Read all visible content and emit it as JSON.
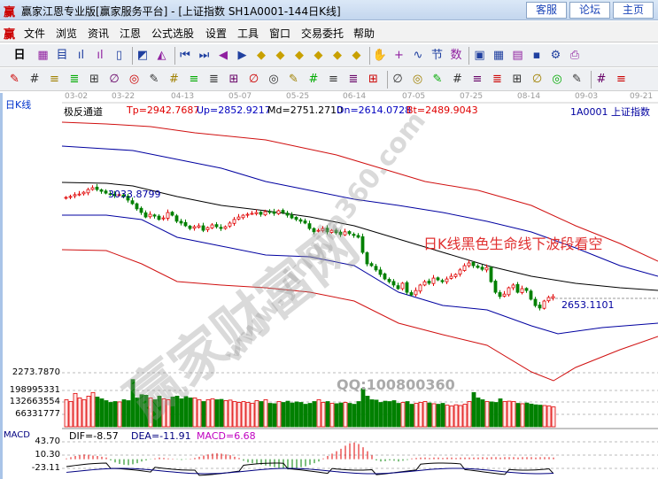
{
  "window": {
    "logo": "赢",
    "title": "赢家江恩专业版[赢家服务平台] - [上证指数  SH1A0001-144日K线]",
    "buttons": [
      "客服",
      "论坛",
      "主页"
    ]
  },
  "menu": {
    "logo": "赢",
    "items": [
      "文件",
      "浏览",
      "资讯",
      "江恩",
      "公式选股",
      "设置",
      "工具",
      "窗口",
      "交易委托",
      "帮助"
    ]
  },
  "toolbar1": {
    "period": "日",
    "icons": [
      "kline-icon",
      "doc-icon",
      "bars3-icon",
      "bars9-icon",
      "candle-icon",
      "gann-icon",
      "fan-icon",
      "first-icon",
      "last-icon",
      "left-icon",
      "right-icon",
      "zoom-in-icon",
      "zoom-out-icon",
      "expand-icon",
      "shrink-icon",
      "star-icon",
      "fit-icon",
      "hand-icon",
      "crosshair-icon",
      "wave-icon",
      "section-icon",
      "num-icon",
      "calendar-icon",
      "calculator-icon",
      "notes-icon",
      "save-icon",
      "settings-icon",
      "print-icon"
    ]
  },
  "toolbar2": {
    "icons": [
      "pen-icon",
      "grid-icon",
      "gold1-icon",
      "gold2-icon",
      "fib-icon",
      "spiral-icon",
      "paint-icon",
      "circle-icon",
      "hash-icon",
      "n2-icon",
      "angle-icon",
      "target-icon",
      "star-circle-icon",
      "square-icon",
      "lines-icon",
      "shen-icon",
      "ying-icon",
      "ruler-icon",
      "span-icon",
      "box-icon",
      "fan-lines-icon",
      "cube-icon",
      "arc-icon",
      "angle2-icon",
      "zigzag-icon",
      "net-icon",
      "net2-icon",
      "slash-icon",
      "table-icon",
      "percent-draw-icon",
      "percent-icon"
    ]
  },
  "left": {
    "period_label": "日K线"
  },
  "dates": [
    "03-02",
    "03-22",
    "04-13",
    "05-07",
    "05-25",
    "06-14",
    "07-05",
    "07-25",
    "08-14",
    "09-03",
    "09-21"
  ],
  "indicator": {
    "name": "极反通道",
    "tp": "Tp=2942.7687",
    "up": "Up=2852.9217",
    "md": "Md=2751.2710",
    "dn": "Dn=2614.0728",
    "bt": "Bt=2489.9043",
    "symbol": "1A0001  上证指数"
  },
  "annotations": {
    "high": "3033.8799",
    "low": "2653.1101",
    "comment": "日K线黑色生命线下波段看空",
    "qq": "QQ:100800360"
  },
  "watermark": {
    "cn": "赢家财富网",
    "url": "www.yingjia360.com"
  },
  "volume": {
    "labels": [
      "2273.7870",
      "198995331",
      "132663554",
      "66331777"
    ]
  },
  "macd": {
    "name": "MACD",
    "dif": "DIF=-8.57",
    "dea": "DEA=-11.91",
    "macd": "MACD=6.68",
    "labels": [
      "43.70",
      "10.30",
      "-23.11"
    ]
  },
  "colors": {
    "up": "#e00000",
    "down": "#008000",
    "band_outer": "#d01010",
    "band_inner": "#0000a0",
    "mid": "#000000"
  },
  "chart_data": {
    "type": "candlestick",
    "closes": [
      3002,
      3005,
      3011,
      3013,
      3019,
      3028,
      3034,
      3028,
      3022,
      3016,
      3013,
      3008,
      3011,
      3005,
      2993,
      2981,
      2964,
      2952,
      2937,
      2946,
      2940,
      2929,
      2934,
      2952,
      2943,
      2923,
      2917,
      2908,
      2899,
      2905,
      2908,
      2893,
      2902,
      2911,
      2905,
      2899,
      2905,
      2917,
      2929,
      2937,
      2943,
      2946,
      2949,
      2952,
      2946,
      2955,
      2952,
      2949,
      2958,
      2952,
      2943,
      2934,
      2929,
      2923,
      2917,
      2899,
      2888,
      2893,
      2899,
      2888,
      2893,
      2885,
      2879,
      2888,
      2882,
      2876,
      2870,
      2820,
      2782,
      2776,
      2762,
      2747,
      2732,
      2723,
      2712,
      2700,
      2718,
      2688,
      2679,
      2694,
      2712,
      2723,
      2718,
      2735,
      2729,
      2723,
      2732,
      2741,
      2747,
      2762,
      2776,
      2785,
      2776,
      2770,
      2764,
      2770,
      2723,
      2688,
      2674,
      2682,
      2703,
      2712,
      2688,
      2700,
      2694,
      2665,
      2644,
      2636,
      2659,
      2671,
      2674
    ],
    "volume_millions": [
      150,
      140,
      185,
      160,
      150,
      170,
      190,
      165,
      155,
      145,
      135,
      140,
      138,
      150,
      145,
      262,
      160,
      178,
      175,
      160,
      150,
      170,
      155,
      150,
      165,
      170,
      155,
      168,
      160,
      160,
      150,
      140,
      150,
      155,
      150,
      152,
      145,
      148,
      140,
      135,
      140,
      135,
      130,
      145,
      140,
      150,
      130,
      128,
      140,
      135,
      142,
      132,
      138,
      135,
      125,
      130,
      140,
      150,
      135,
      140,
      130,
      128,
      132,
      135,
      130,
      125,
      140,
      212,
      170,
      150,
      148,
      135,
      142,
      140,
      145,
      130,
      135,
      140,
      125,
      130,
      135,
      140,
      132,
      128,
      125,
      130,
      120,
      115,
      122,
      118,
      125,
      140,
      190,
      160,
      150,
      140,
      138,
      135,
      155,
      140,
      142,
      140,
      130,
      128,
      132,
      126,
      122,
      120,
      118,
      115,
      110
    ],
    "macd_hist": [
      2,
      5,
      8,
      10,
      12,
      11,
      9,
      8,
      6,
      4,
      -3,
      -8,
      -12,
      -14,
      -15,
      -13,
      -10,
      -6,
      -3,
      -1,
      2,
      4,
      3,
      2,
      1,
      -1,
      -2,
      -1,
      1,
      3,
      6,
      9,
      12,
      14,
      15,
      14,
      12,
      10,
      6,
      3,
      -4,
      -8,
      -10,
      -12,
      -14,
      -16,
      -18,
      -20,
      -22,
      -24,
      -26,
      -24,
      -22,
      -20,
      -18,
      -14,
      -10,
      -6,
      2,
      8,
      14,
      20,
      26,
      34,
      40,
      42,
      38,
      30,
      20,
      10,
      -3,
      -6,
      -5,
      -3,
      -4,
      -6,
      -4,
      -2,
      2,
      3,
      4,
      4,
      3,
      4,
      4,
      3,
      4,
      4,
      3,
      4,
      4,
      4,
      4,
      4,
      5,
      4,
      5,
      5,
      4,
      5,
      5,
      5,
      4,
      5,
      5,
      5,
      4,
      5,
      5,
      5,
      4
    ]
  }
}
